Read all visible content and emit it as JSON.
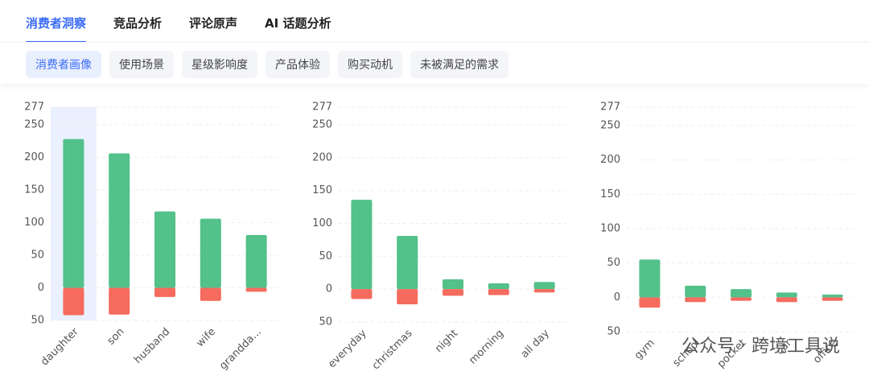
{
  "tabs": [
    "消费者洞察",
    "竞品分析",
    "评论原声",
    "AI 话题分析"
  ],
  "subtabs": [
    "消费者画像",
    "使用场景",
    "星级影响度",
    "产品体验",
    "购买动机",
    "未被满足的需求"
  ],
  "watermark": "公众号 · 跨境工具说",
  "chart_data": [
    {
      "type": "bar",
      "highlight": 0,
      "categories": [
        "daughter",
        "son",
        "husband",
        "wife",
        "grandda..."
      ],
      "series": [
        {
          "color": "#52c18a",
          "values": [
            228,
            206,
            117,
            106,
            81
          ]
        },
        {
          "color": "#f56b5e",
          "values": [
            -42,
            -41,
            -14,
            -20,
            -6
          ]
        }
      ],
      "ylim": [
        -50,
        277
      ],
      "yticks": [
        {
          "value": -50,
          "label": "50"
        },
        0,
        50,
        100,
        150,
        200,
        250,
        277
      ],
      "grid": true
    },
    {
      "type": "bar",
      "categories": [
        "everyday",
        "christmas",
        "night",
        "morning",
        "all day"
      ],
      "series": [
        {
          "color": "#52c18a",
          "values": [
            136,
            81,
            15,
            9,
            11
          ]
        },
        {
          "color": "#f56b5e",
          "values": [
            -15,
            -23,
            -10,
            -9,
            -5
          ]
        }
      ],
      "ylim": [
        -50,
        277
      ],
      "yticks": [
        {
          "value": -50,
          "label": "50"
        },
        0,
        50,
        100,
        150,
        200,
        250,
        277
      ],
      "grid": true
    },
    {
      "type": "bar",
      "categories": [
        "gym",
        "school",
        "pocket",
        "car",
        "office"
      ],
      "series": [
        {
          "color": "#52c18a",
          "values": [
            55,
            17,
            12,
            7,
            4
          ]
        },
        {
          "color": "#f56b5e",
          "values": [
            -15,
            -7,
            -5,
            -7,
            -5
          ]
        }
      ],
      "ylim": [
        -50,
        277
      ],
      "yticks": [
        {
          "value": -50,
          "label": "50"
        },
        0,
        50,
        100,
        150,
        200,
        250,
        277
      ],
      "grid": true
    }
  ]
}
